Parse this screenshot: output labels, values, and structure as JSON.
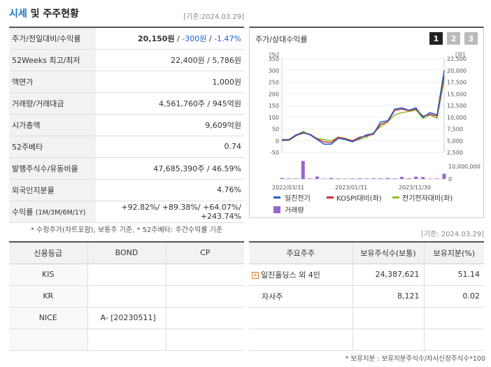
{
  "header": {
    "title_part1": "시세",
    "title_part2": " 및 주주현황",
    "ref_date": "[기준:2024.03.29]"
  },
  "price_rows": {
    "r0": {
      "label": "주가/전일대비/수익률",
      "price": "20,150원",
      "sep1": " / ",
      "change": "-300원",
      "sep2": " / ",
      "rate": "-1.47%"
    },
    "r1": {
      "label": "52Weeks 최고/최저",
      "value": "22,400원 / 5,786원"
    },
    "r2": {
      "label": "액면가",
      "value": "1,000원"
    },
    "r3": {
      "label": "거래량/거래대금",
      "value": "4,561,760주 / 945억원"
    },
    "r4": {
      "label": "시가총액",
      "value": "9,609억원"
    },
    "r5": {
      "label": "52주베타",
      "value": "0.74"
    },
    "r6": {
      "label": "발행주식수/유동비율",
      "value": "47,685,390주 / 46.59%"
    },
    "r7": {
      "label": "외국인지분율",
      "value": "4.76%"
    },
    "r8": {
      "label": "수익률",
      "label_sub": "(1M/3M/6M/1Y)",
      "v1": "+92.82%",
      "v2": "+89.38%",
      "v3": "+64.07%",
      "v4": "+243.74%",
      "sep": "/ "
    }
  },
  "note1": "* 수정주가(차트포함), 보통주 기준, * 52주베타: 주간수익률 기준",
  "chart": {
    "title": "주가/상대수익률",
    "tabs": [
      "1",
      "2",
      "3"
    ],
    "left_unit": "[%]",
    "right_unit": "[원]",
    "left_ticks": [
      "350",
      "300",
      "250",
      "200",
      "150",
      "100",
      "50",
      "0",
      "-50"
    ],
    "right_ticks": [
      "22,500",
      "20,000",
      "17,500",
      "15,000",
      "12,500",
      "10,000",
      "7,500",
      "5,000",
      "2,500"
    ],
    "volume_tick": "10,000,000",
    "volume_zero": "0",
    "x_labels": [
      "2022/03/31",
      "2023/01/31",
      "2023/11/30"
    ],
    "legend": {
      "l1": "일진전기",
      "l2": "KOSPI대비(좌)",
      "l3": "전기전자대비(좌)",
      "l4": "거래량"
    },
    "colors": {
      "stock": "#1e5fd1",
      "kospi": "#d32f2f",
      "sector": "#8cbf26",
      "volume": "#9966cc"
    }
  },
  "chart_data": {
    "type": "line",
    "series": [
      {
        "name": "일진전기",
        "values": [
          5,
          5,
          25,
          35,
          25,
          5,
          -15,
          -15,
          10,
          5,
          -5,
          10,
          25,
          30,
          80,
          85,
          135,
          140,
          130,
          140,
          100,
          120,
          110,
          300
        ]
      },
      {
        "name": "KOSPI대비(좌)",
        "values": [
          2,
          2,
          22,
          32,
          28,
          8,
          -5,
          -8,
          15,
          8,
          0,
          15,
          20,
          28,
          70,
          80,
          130,
          135,
          128,
          135,
          105,
          112,
          105,
          275
        ]
      },
      {
        "name": "전기전자대비(좌)",
        "values": [
          0,
          2,
          20,
          40,
          25,
          10,
          5,
          0,
          15,
          10,
          0,
          5,
          15,
          35,
          60,
          80,
          110,
          120,
          125,
          130,
          95,
          110,
          95,
          260
        ]
      }
    ],
    "volume": [
      600000,
      300000,
      250000,
      11000000,
      300000,
      1500000,
      200000,
      600000,
      300000,
      200000,
      300000,
      400000,
      300000,
      400000,
      400000,
      600000,
      300000,
      1300000,
      400000,
      1400000,
      1200000,
      200000,
      300000,
      3200000
    ],
    "ylim_left": [
      -50,
      350
    ],
    "ylim_right": [
      2500,
      22500
    ],
    "xlabels": [
      "2022/03/31",
      "2023/01/31",
      "2023/11/30"
    ]
  },
  "ref_date2": "[기준: 2024.03.29]",
  "credit": {
    "headers": [
      "신용등급",
      "BOND",
      "CP"
    ],
    "rows": [
      {
        "agency": "KIS",
        "bond": "",
        "cp": ""
      },
      {
        "agency": "KR",
        "bond": "",
        "cp": ""
      },
      {
        "agency": "NICE",
        "bond": "A-  [20230511]",
        "cp": ""
      },
      {
        "agency": "",
        "bond": "",
        "cp": ""
      }
    ]
  },
  "holders": {
    "headers": [
      "주요주주",
      "보유주식수(보통)",
      "보유지분(%)"
    ],
    "rows": [
      {
        "name": "일진홀딩스 외 4인",
        "shares": "24,387,621",
        "pct": "51.14"
      },
      {
        "name": "자사주",
        "shares": "8,121",
        "pct": "0.02"
      }
    ]
  },
  "note2": "* 보유지분 : 보유지분주식수/자사신정주식수*100"
}
